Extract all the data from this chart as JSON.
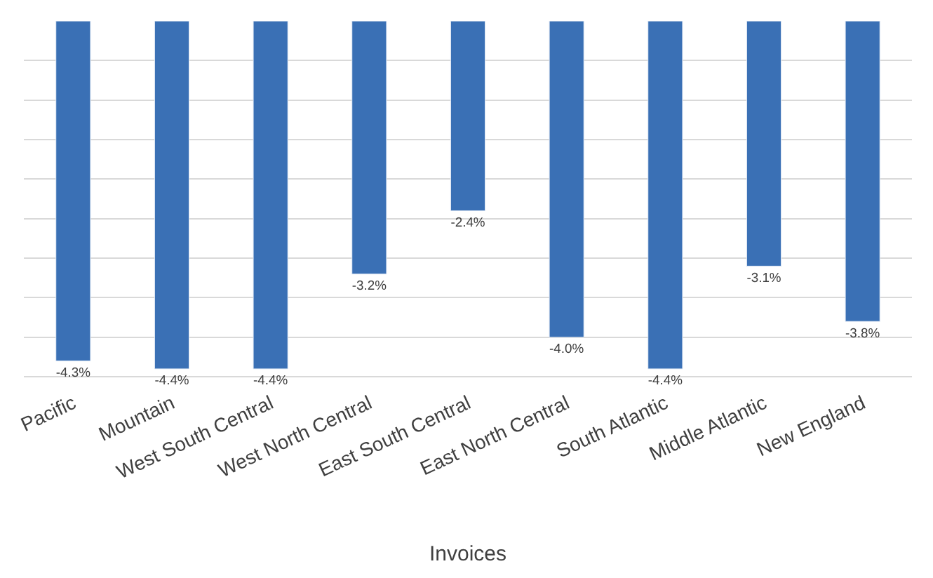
{
  "chart_data": {
    "type": "bar",
    "xlabel": "Invoices",
    "categories": [
      "Pacific",
      "Mountain",
      "West South Central",
      "West North Central",
      "East South Central",
      "East North Central",
      "South Atlantic",
      "Middle Atlantic",
      "New England"
    ],
    "values": [
      -4.3,
      -4.4,
      -4.4,
      -3.2,
      -2.4,
      -4.0,
      -4.4,
      -3.1,
      -3.8
    ],
    "value_labels": [
      "-4.3%",
      "-4.4%",
      "-4.4%",
      "-3.2%",
      "-2.4%",
      "-4.0%",
      "-4.4%",
      "-3.1%",
      "-3.8%"
    ],
    "color": "#3a70b5",
    "grid": "y",
    "tick_labels": "x",
    "legend": false
  }
}
